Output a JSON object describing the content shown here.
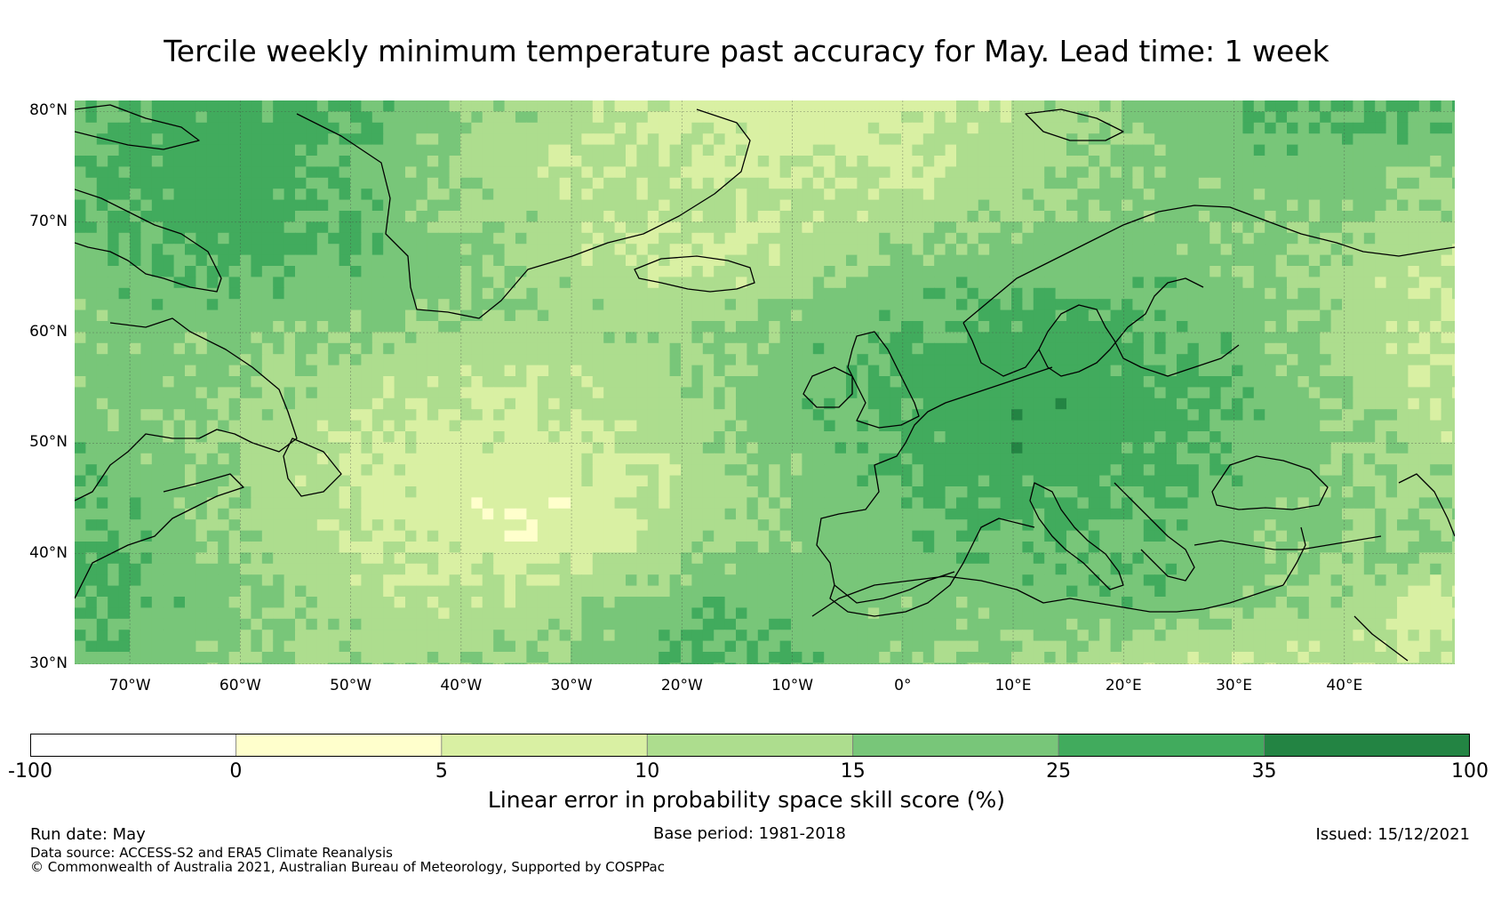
{
  "title": "Tercile weekly minimum temperature past accuracy for May. Lead time: 1 week",
  "map": {
    "lat_range": [
      30,
      81
    ],
    "lon_range": [
      -75,
      50
    ],
    "lat_ticks": [
      "80°N",
      "70°N",
      "60°N",
      "50°N",
      "40°N",
      "30°N"
    ],
    "lat_values": [
      80,
      70,
      60,
      50,
      40,
      30
    ],
    "lon_ticks": [
      "70°W",
      "60°W",
      "50°W",
      "40°W",
      "30°W",
      "20°W",
      "10°W",
      "0°",
      "10°E",
      "20°E",
      "30°E",
      "40°E"
    ],
    "lon_values": [
      -70,
      -60,
      -50,
      -40,
      -30,
      -20,
      -10,
      0,
      10,
      20,
      30,
      40
    ],
    "coastline_color": "#000000",
    "gridlines": true
  },
  "colorbar": {
    "bounds": [
      "-100",
      "0",
      "5",
      "10",
      "15",
      "25",
      "35",
      "100"
    ],
    "colors": [
      "#ffffff",
      "#ffffcc",
      "#d9f0a3",
      "#addd8e",
      "#78c679",
      "#41ab5d",
      "#238443"
    ],
    "label": "Linear error in probability space skill score (%)"
  },
  "footer": {
    "run_date": "Run date: May",
    "base_period": "Base period: 1981-2018",
    "issued": "Issued: 15/12/2021",
    "data_source": "Data source: ACCESS-S2 and ERA5 Climate Reanalysis",
    "copyright": "© Commonwealth of Australia 2021, Australian Bureau of Meteorology, Supported by COSPPac"
  }
}
